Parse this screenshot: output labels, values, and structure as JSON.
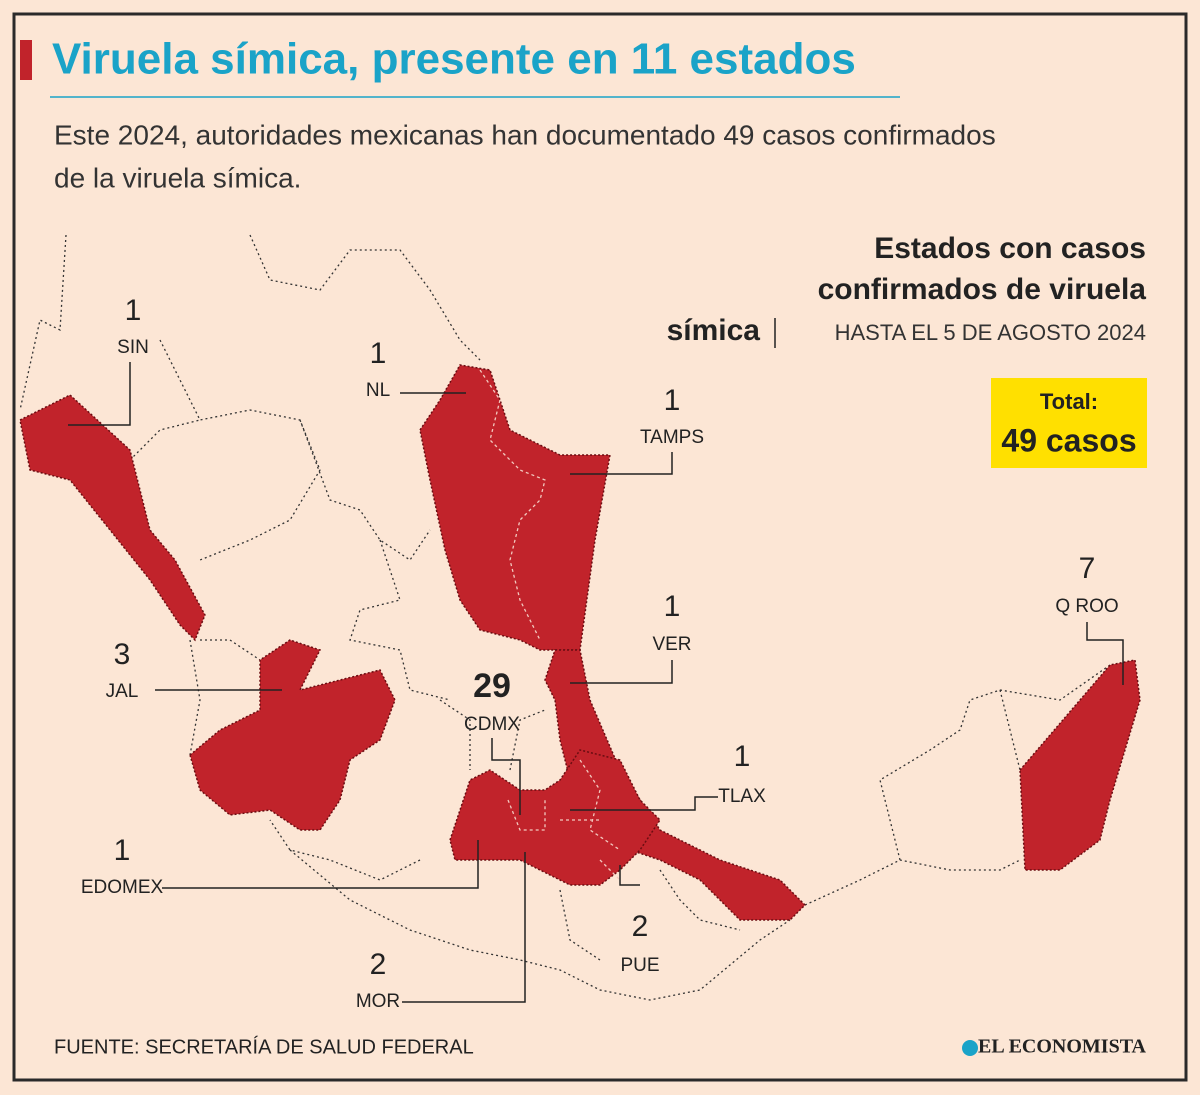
{
  "header": {
    "title": "Viruela símica, presente en 11 estados",
    "subtitle_lines": [
      "Este 2024, autoridades mexicanas han documentado 49 casos confirmados",
      "de la viruela símica."
    ]
  },
  "panel": {
    "heading_lines": [
      "Estados con casos",
      "confirmados de viruela",
      "símica"
    ],
    "date": "HASTA EL 5 DE AGOSTO 2024",
    "total_label": "Total:",
    "total_value": "49 casos"
  },
  "states": [
    {
      "code": "SIN",
      "cases": 1
    },
    {
      "code": "NL",
      "cases": 1
    },
    {
      "code": "TAMPS",
      "cases": 1
    },
    {
      "code": "VER",
      "cases": 1
    },
    {
      "code": "JAL",
      "cases": 3
    },
    {
      "code": "CDMX",
      "cases": 29
    },
    {
      "code": "TLAX",
      "cases": 1
    },
    {
      "code": "Q ROO",
      "cases": 7
    },
    {
      "code": "EDOMEX",
      "cases": 1
    },
    {
      "code": "MOR",
      "cases": 2
    },
    {
      "code": "PUE",
      "cases": 2
    }
  ],
  "footer": {
    "source": "FUENTE: SECRETARÍA DE SALUD FEDERAL",
    "logo": "EL ECONOMISTA"
  }
}
